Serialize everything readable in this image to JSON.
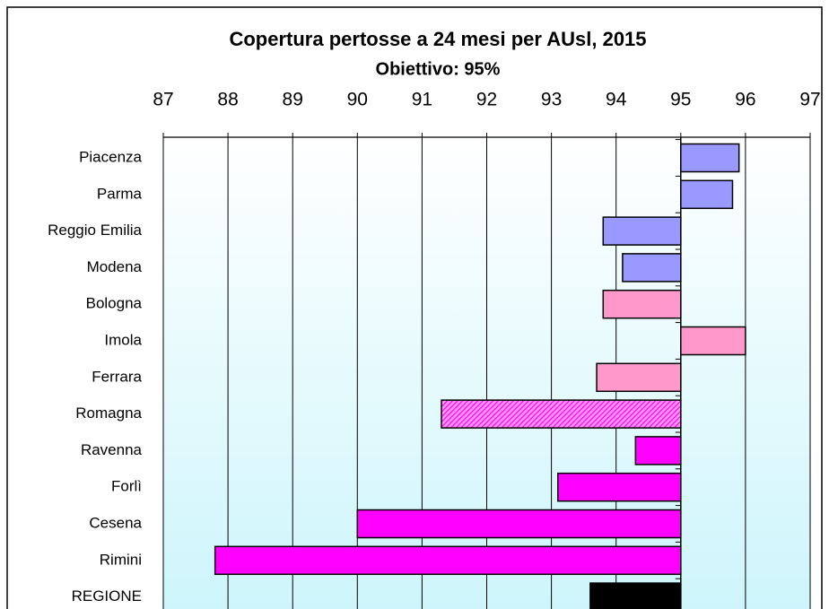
{
  "chart_data": {
    "type": "bar",
    "orientation": "horizontal",
    "title": "Copertura pertosse a 24 mesi per AUsl, 2015",
    "subtitle": "Obiettivo: 95%",
    "categories": [
      "Piacenza",
      "Parma",
      "Reggio Emilia",
      "Modena",
      "Bologna",
      "Imola",
      "Ferrara",
      "Romagna",
      "Ravenna",
      "Forlì",
      "Cesena",
      "Rimini",
      "REGIONE"
    ],
    "values": [
      95.9,
      95.8,
      93.8,
      94.1,
      93.8,
      96.0,
      93.7,
      91.3,
      94.3,
      93.1,
      90.0,
      87.8,
      93.6
    ],
    "colors": [
      "#9999ff",
      "#9999ff",
      "#9999ff",
      "#9999ff",
      "#ff99cc",
      "#ff99cc",
      "#ff99cc",
      "#ff00ff",
      "#ff00ff",
      "#ff00ff",
      "#ff00ff",
      "#ff00ff",
      "#000000"
    ],
    "patterns": [
      null,
      null,
      null,
      null,
      null,
      null,
      null,
      "hatch",
      null,
      null,
      null,
      null,
      null
    ],
    "baseline": 95,
    "xlim": [
      87,
      97
    ],
    "xticks": [
      87,
      88,
      89,
      90,
      91,
      92,
      93,
      94,
      95,
      96,
      97
    ],
    "grid": true
  }
}
